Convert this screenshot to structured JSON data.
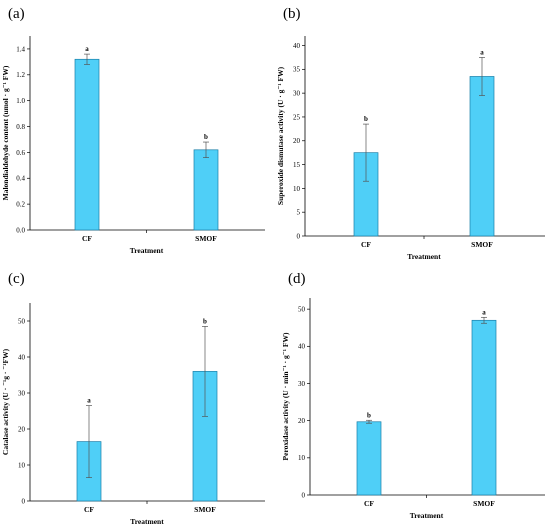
{
  "colors": {
    "bar_fill": "#4FCFF7",
    "bar_stroke": "#1a7fa8",
    "axis": "#000000",
    "error_bar": "#555555"
  },
  "chart_data": [
    {
      "type": "bar",
      "panel": "(a)",
      "categories": [
        "CF",
        "SMOF"
      ],
      "values": [
        1.32,
        0.62
      ],
      "errors": [
        0.04,
        0.06
      ],
      "significance": [
        "a",
        "b"
      ],
      "xlabel": "Treatment",
      "ylabel": "Malondialdehyde content (umol · g⁻¹ FW)",
      "ylim": [
        0,
        1.5
      ],
      "yticks": [
        "0.0",
        "0.2",
        "0.4",
        "0.6",
        "0.8",
        "1.0",
        "1.2",
        "1.4"
      ]
    },
    {
      "type": "bar",
      "panel": "(b)",
      "categories": [
        "CF",
        "SMOF"
      ],
      "values": [
        17.5,
        33.5
      ],
      "errors": [
        6.0,
        4.0
      ],
      "significance": [
        "b",
        "a"
      ],
      "xlabel": "Treatment",
      "ylabel": "Superoxide dismutase activity (U · g⁻¹ FW)",
      "ylim": [
        0,
        42
      ],
      "yticks": [
        "0",
        "5",
        "10",
        "15",
        "20",
        "25",
        "30",
        "35",
        "40"
      ]
    },
    {
      "type": "bar",
      "panel": "(c)",
      "categories": [
        "CF",
        "SMOF"
      ],
      "values": [
        16.5,
        36.0
      ],
      "errors": [
        10.0,
        12.5
      ],
      "significance": [
        "a",
        "b"
      ],
      "xlabel": "Treatment",
      "ylabel": "Catalase activity (U · ⁻¹g · ⁻¹FW)",
      "ylim": [
        0,
        55
      ],
      "yticks": [
        "0",
        "10",
        "20",
        "30",
        "40",
        "50"
      ]
    },
    {
      "type": "bar",
      "panel": "(d)",
      "categories": [
        "CF",
        "SMOF"
      ],
      "values": [
        19.7,
        47.0
      ],
      "errors": [
        0.4,
        0.8
      ],
      "significance": [
        "b",
        "a"
      ],
      "xlabel": "Treatment",
      "ylabel": "Peroxidase activity (U · min⁻¹ · g⁻¹ FW)",
      "ylim": [
        0,
        53
      ],
      "yticks": [
        "0",
        "10",
        "20",
        "30",
        "40",
        "50"
      ]
    }
  ]
}
